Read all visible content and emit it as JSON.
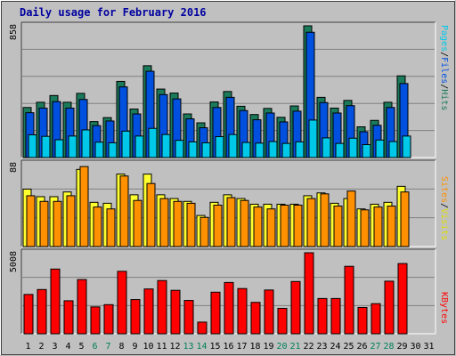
{
  "title": "Daily usage for February 2016",
  "colors": {
    "background": "#c0c0c0",
    "panel": "#c0c0c0",
    "grid": "#808080",
    "pages": "#00c8e8",
    "files": "#0050e0",
    "hits": "#1a7a5a",
    "visits": "#ffff30",
    "sites": "#ff9000",
    "kbytes": "#ff0000",
    "weekday_label": "#000000",
    "weekend_label": "#00805a",
    "separator": "#000000"
  },
  "right_labels": {
    "pages": "Pages",
    "files": "Files",
    "hits": "Hits",
    "sites": "Sites",
    "visits": "Visits",
    "kbytes": "KBytes",
    "sep": "/"
  },
  "chart_data": {
    "type": "bar",
    "days": [
      "1",
      "2",
      "3",
      "4",
      "5",
      "6",
      "7",
      "8",
      "9",
      "10",
      "11",
      "12",
      "13",
      "14",
      "15",
      "16",
      "17",
      "18",
      "19",
      "20",
      "21",
      "22",
      "23",
      "24",
      "25",
      "26",
      "27",
      "28",
      "29",
      "30",
      "31"
    ],
    "weekend_days": [
      "6",
      "7",
      "13",
      "14",
      "20",
      "21",
      "27",
      "28"
    ],
    "panels": [
      {
        "id": "hits-files-pages",
        "ymax_label": "858",
        "ymax": 858,
        "series": [
          {
            "name": "Hits",
            "key": "hits",
            "values": [
              326,
              360,
              404,
              360,
              418,
              234,
              260,
              496,
              316,
              598,
              446,
              420,
              284,
              226,
              362,
              430,
              334,
              280,
              320,
              262,
              336,
              858,
              392,
              322,
              372,
              200,
              242,
              360,
              532
            ]
          },
          {
            "name": "Files",
            "key": "files",
            "values": [
              292,
              322,
              364,
              322,
              378,
              208,
              238,
              460,
              284,
              562,
              410,
              382,
              252,
              194,
              326,
              392,
              306,
              246,
              290,
              232,
              302,
              816,
              358,
              290,
              338,
              168,
              210,
              326,
              482
            ]
          },
          {
            "name": "Pages",
            "key": "pages",
            "values": [
              148,
              138,
              116,
              140,
              180,
              100,
              96,
              172,
              140,
              190,
              150,
              112,
              102,
              96,
              136,
              150,
              98,
              94,
              104,
              92,
              102,
              244,
              128,
              92,
              126,
              84,
              114,
              104,
              140
            ]
          }
        ]
      },
      {
        "id": "visits-sites",
        "ymax_label": "88",
        "ymax": 88,
        "series": [
          {
            "name": "Visits",
            "key": "visits",
            "values": [
              61,
              53,
              53,
              58,
              82,
              47,
              46,
              77,
              55,
              77,
              55,
              51,
              48,
              33,
              47,
              55,
              51,
              45,
              45,
              45,
              45,
              54,
              57,
              46,
              51,
              40,
              45,
              47,
              64
            ]
          },
          {
            "name": "Sites",
            "key": "sites",
            "values": [
              54,
              48,
              48,
              54,
              85,
              42,
              40,
              75,
              49,
              67,
              51,
              48,
              46,
              31,
              44,
              52,
              49,
              42,
              40,
              44,
              44,
              51,
              56,
              43,
              59,
              39,
              42,
              43,
              58
            ]
          }
        ]
      },
      {
        "id": "kbytes",
        "ymax_label": "5008",
        "ymax": 5008,
        "series": [
          {
            "name": "KBytes",
            "key": "kbytes",
            "values": [
              2430,
              2735,
              4000,
              2040,
              3350,
              1660,
              1800,
              3860,
              2115,
              2770,
              3290,
              2685,
              2060,
              720,
              2570,
              3170,
              2795,
              1940,
              2705,
              1570,
              3230,
              5008,
              2180,
              2180,
              4170,
              1625,
              1860,
              3250,
              4340
            ]
          }
        ]
      }
    ]
  }
}
